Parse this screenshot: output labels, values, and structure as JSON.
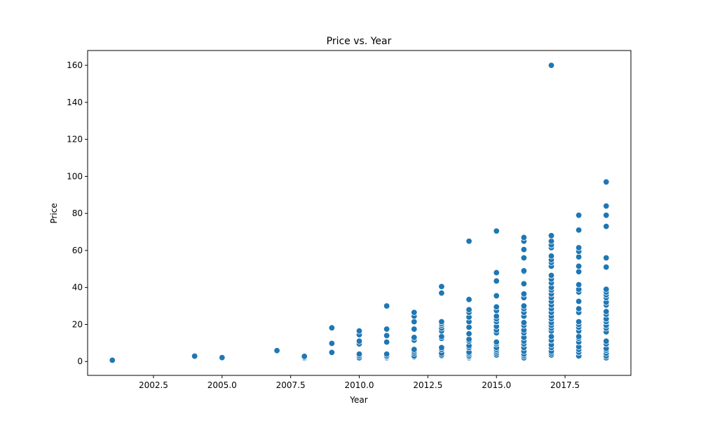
{
  "chart_data": {
    "type": "scatter",
    "title": "Price vs. Year",
    "xlabel": "Year",
    "ylabel": "Price",
    "xlim": [
      2000.1,
      2019.9
    ],
    "ylim": [
      -7.5,
      168
    ],
    "xticks": [
      2002.5,
      2005.0,
      2007.5,
      2010.0,
      2012.5,
      2015.0,
      2017.5
    ],
    "xtick_labels": [
      "2002.5",
      "2005.0",
      "2007.5",
      "2010.0",
      "2012.5",
      "2015.0",
      "2017.5"
    ],
    "yticks": [
      0,
      20,
      40,
      60,
      80,
      100,
      120,
      140,
      160
    ],
    "ytick_labels": [
      "0",
      "20",
      "40",
      "60",
      "80",
      "100",
      "120",
      "140",
      "160"
    ],
    "grid": false,
    "marker_color": "#1f77b4",
    "marker_edge_color": "#ffffff",
    "points": [
      [
        2001,
        0.7
      ],
      [
        2004,
        2.9
      ],
      [
        2005,
        2.1
      ],
      [
        2007,
        5.9
      ],
      [
        2008,
        1.8
      ],
      [
        2008,
        2.3
      ],
      [
        2008,
        2.8
      ],
      [
        2009,
        4.9
      ],
      [
        2009,
        9.8
      ],
      [
        2009,
        18.2
      ],
      [
        2010,
        2.0
      ],
      [
        2010,
        3.0
      ],
      [
        2010,
        4.0
      ],
      [
        2010,
        9.5
      ],
      [
        2010,
        11.0
      ],
      [
        2010,
        14.5
      ],
      [
        2010,
        16.5
      ],
      [
        2011,
        2.0
      ],
      [
        2011,
        2.5
      ],
      [
        2011,
        3.0
      ],
      [
        2011,
        4.0
      ],
      [
        2011,
        10.5
      ],
      [
        2011,
        14.0
      ],
      [
        2011,
        17.5
      ],
      [
        2011,
        30.0
      ],
      [
        2012,
        2.5
      ],
      [
        2012,
        3.0
      ],
      [
        2012,
        4.5
      ],
      [
        2012,
        5.5
      ],
      [
        2012,
        6.5
      ],
      [
        2012,
        11.5
      ],
      [
        2012,
        13.0
      ],
      [
        2012,
        17.5
      ],
      [
        2012,
        21.5
      ],
      [
        2012,
        24.5
      ],
      [
        2012,
        26.5
      ],
      [
        2013,
        3.0
      ],
      [
        2013,
        3.5
      ],
      [
        2013,
        4.5
      ],
      [
        2013,
        6.5
      ],
      [
        2013,
        7.5
      ],
      [
        2013,
        12.5
      ],
      [
        2013,
        13.5
      ],
      [
        2013,
        16.5
      ],
      [
        2013,
        18.0
      ],
      [
        2013,
        19.5
      ],
      [
        2013,
        20.5
      ],
      [
        2013,
        21.5
      ],
      [
        2013,
        37.0
      ],
      [
        2013,
        40.5
      ],
      [
        2014,
        2.0
      ],
      [
        2014,
        2.5
      ],
      [
        2014,
        3.0
      ],
      [
        2014,
        4.0
      ],
      [
        2014,
        5.0
      ],
      [
        2014,
        7.5
      ],
      [
        2014,
        8.5
      ],
      [
        2014,
        11.0
      ],
      [
        2014,
        12.0
      ],
      [
        2014,
        15.0
      ],
      [
        2014,
        18.5
      ],
      [
        2014,
        21.5
      ],
      [
        2014,
        24.0
      ],
      [
        2014,
        26.5
      ],
      [
        2014,
        28.0
      ],
      [
        2014,
        33.5
      ],
      [
        2014,
        65.0
      ],
      [
        2015,
        3.5
      ],
      [
        2015,
        4.5
      ],
      [
        2015,
        5.5
      ],
      [
        2015,
        6.5
      ],
      [
        2015,
        7.5
      ],
      [
        2015,
        9.5
      ],
      [
        2015,
        10.5
      ],
      [
        2015,
        15.5
      ],
      [
        2015,
        17.0
      ],
      [
        2015,
        19.0
      ],
      [
        2015,
        21.5
      ],
      [
        2015,
        23.0
      ],
      [
        2015,
        24.5
      ],
      [
        2015,
        27.5
      ],
      [
        2015,
        29.5
      ],
      [
        2015,
        35.5
      ],
      [
        2015,
        43.5
      ],
      [
        2015,
        48.0
      ],
      [
        2015,
        70.5
      ],
      [
        2016,
        2.0
      ],
      [
        2016,
        3.0
      ],
      [
        2016,
        4.0
      ],
      [
        2016,
        5.5
      ],
      [
        2016,
        7.5
      ],
      [
        2016,
        9.5
      ],
      [
        2016,
        11.0
      ],
      [
        2016,
        13.0
      ],
      [
        2016,
        15.5
      ],
      [
        2016,
        17.0
      ],
      [
        2016,
        19.5
      ],
      [
        2016,
        21.0
      ],
      [
        2016,
        24.5
      ],
      [
        2016,
        26.5
      ],
      [
        2016,
        28.5
      ],
      [
        2016,
        30.0
      ],
      [
        2016,
        34.5
      ],
      [
        2016,
        36.5
      ],
      [
        2016,
        42.0
      ],
      [
        2016,
        48.5
      ],
      [
        2016,
        49.0
      ],
      [
        2016,
        56.0
      ],
      [
        2016,
        60.5
      ],
      [
        2016,
        65.0
      ],
      [
        2016,
        67.0
      ],
      [
        2017,
        3.5
      ],
      [
        2017,
        4.5
      ],
      [
        2017,
        5.5
      ],
      [
        2017,
        7.5
      ],
      [
        2017,
        9.0
      ],
      [
        2017,
        11.5
      ],
      [
        2017,
        13.5
      ],
      [
        2017,
        16.5
      ],
      [
        2017,
        18.0
      ],
      [
        2017,
        19.5
      ],
      [
        2017,
        21.0
      ],
      [
        2017,
        23.0
      ],
      [
        2017,
        24.5
      ],
      [
        2017,
        26.5
      ],
      [
        2017,
        28.5
      ],
      [
        2017,
        30.5
      ],
      [
        2017,
        32.5
      ],
      [
        2017,
        34.5
      ],
      [
        2017,
        36.5
      ],
      [
        2017,
        38.5
      ],
      [
        2017,
        40.0
      ],
      [
        2017,
        42.5
      ],
      [
        2017,
        44.5
      ],
      [
        2017,
        46.5
      ],
      [
        2017,
        51.5
      ],
      [
        2017,
        53.5
      ],
      [
        2017,
        55.0
      ],
      [
        2017,
        57.0
      ],
      [
        2017,
        61.5
      ],
      [
        2017,
        63.0
      ],
      [
        2017,
        65.0
      ],
      [
        2017,
        68.0
      ],
      [
        2017,
        160.0
      ],
      [
        2018,
        3.0
      ],
      [
        2018,
        5.0
      ],
      [
        2018,
        6.5
      ],
      [
        2018,
        8.0
      ],
      [
        2018,
        10.5
      ],
      [
        2018,
        12.5
      ],
      [
        2018,
        13.5
      ],
      [
        2018,
        16.5
      ],
      [
        2018,
        18.5
      ],
      [
        2018,
        20.0
      ],
      [
        2018,
        21.5
      ],
      [
        2018,
        26.5
      ],
      [
        2018,
        28.5
      ],
      [
        2018,
        32.5
      ],
      [
        2018,
        37.5
      ],
      [
        2018,
        39.0
      ],
      [
        2018,
        41.5
      ],
      [
        2018,
        48.5
      ],
      [
        2018,
        51.5
      ],
      [
        2018,
        56.5
      ],
      [
        2018,
        59.5
      ],
      [
        2018,
        61.5
      ],
      [
        2018,
        71.0
      ],
      [
        2018,
        79.0
      ],
      [
        2019,
        2.0
      ],
      [
        2019,
        3.0
      ],
      [
        2019,
        4.5
      ],
      [
        2019,
        6.0
      ],
      [
        2019,
        7.0
      ],
      [
        2019,
        9.5
      ],
      [
        2019,
        11.0
      ],
      [
        2019,
        16.0
      ],
      [
        2019,
        18.0
      ],
      [
        2019,
        19.5
      ],
      [
        2019,
        21.5
      ],
      [
        2019,
        23.0
      ],
      [
        2019,
        25.5
      ],
      [
        2019,
        27.0
      ],
      [
        2019,
        30.5
      ],
      [
        2019,
        32.0
      ],
      [
        2019,
        34.5
      ],
      [
        2019,
        36.0
      ],
      [
        2019,
        37.5
      ],
      [
        2019,
        39.0
      ],
      [
        2019,
        51.0
      ],
      [
        2019,
        56.0
      ],
      [
        2019,
        73.0
      ],
      [
        2019,
        79.0
      ],
      [
        2019,
        84.0
      ],
      [
        2019,
        97.0
      ]
    ]
  }
}
